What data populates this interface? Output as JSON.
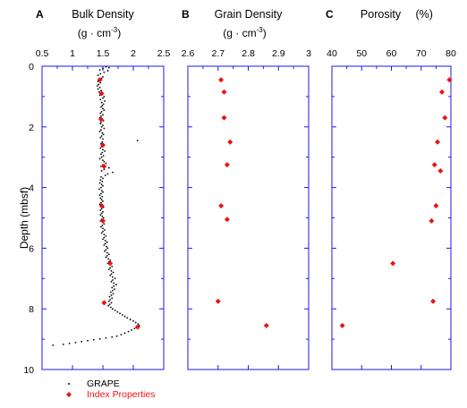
{
  "chart_data": [
    {
      "type": "scatter",
      "panel_label": "A",
      "title": "Bulk Density",
      "unit_base": "(g · cm",
      "unit_exp": "-3",
      "unit_close": ")",
      "ylabel": "Depth (mbsf)",
      "xlim": [
        0.5,
        2.5
      ],
      "ylim": [
        0,
        10
      ],
      "xticks": [
        "0.5",
        "1",
        "1.5",
        "2",
        "2.5"
      ],
      "yticks": [
        "0",
        "2",
        "4",
        "6",
        "8",
        "10"
      ],
      "series": [
        {
          "name": "GRAPE",
          "color": "#000000",
          "points": [
            [
              1.55,
              0.02
            ],
            [
              1.6,
              0.05
            ],
            [
              1.5,
              0.08
            ],
            [
              1.45,
              0.12
            ],
            [
              1.58,
              0.15
            ],
            [
              1.52,
              0.2
            ],
            [
              1.46,
              0.25
            ],
            [
              1.42,
              0.3
            ],
            [
              1.5,
              0.35
            ],
            [
              1.48,
              0.4
            ],
            [
              1.44,
              0.45
            ],
            [
              1.42,
              0.5
            ],
            [
              1.46,
              0.55
            ],
            [
              1.43,
              0.6
            ],
            [
              1.41,
              0.65
            ],
            [
              1.45,
              0.7
            ],
            [
              1.42,
              0.75
            ],
            [
              1.47,
              0.8
            ],
            [
              1.44,
              0.85
            ],
            [
              1.49,
              0.9
            ],
            [
              1.45,
              0.95
            ],
            [
              1.52,
              1.0
            ],
            [
              1.5,
              1.05
            ],
            [
              1.46,
              1.1
            ],
            [
              1.53,
              1.15
            ],
            [
              1.48,
              1.2
            ],
            [
              1.51,
              1.25
            ],
            [
              1.49,
              1.3
            ],
            [
              1.47,
              1.35
            ],
            [
              1.5,
              1.4
            ],
            [
              1.52,
              1.45
            ],
            [
              1.48,
              1.5
            ],
            [
              1.46,
              1.55
            ],
            [
              1.5,
              1.6
            ],
            [
              1.47,
              1.65
            ],
            [
              1.45,
              1.7
            ],
            [
              1.49,
              1.75
            ],
            [
              1.51,
              1.8
            ],
            [
              1.47,
              1.85
            ],
            [
              1.46,
              1.9
            ],
            [
              1.5,
              1.95
            ],
            [
              1.48,
              2.0
            ],
            [
              1.52,
              2.05
            ],
            [
              1.47,
              2.1
            ],
            [
              1.45,
              2.15
            ],
            [
              1.49,
              2.2
            ],
            [
              1.51,
              2.25
            ],
            [
              1.48,
              2.3
            ],
            [
              1.46,
              2.35
            ],
            [
              1.5,
              2.4
            ],
            [
              2.07,
              2.45
            ],
            [
              1.49,
              2.5
            ],
            [
              1.47,
              2.55
            ],
            [
              1.52,
              2.6
            ],
            [
              1.48,
              2.65
            ],
            [
              1.46,
              2.7
            ],
            [
              1.5,
              2.75
            ],
            [
              1.53,
              2.8
            ],
            [
              1.49,
              2.85
            ],
            [
              1.47,
              2.9
            ],
            [
              1.51,
              2.95
            ],
            [
              1.48,
              3.0
            ],
            [
              1.45,
              3.05
            ],
            [
              1.5,
              3.1
            ],
            [
              1.52,
              3.15
            ],
            [
              1.55,
              3.2
            ],
            [
              1.5,
              3.25
            ],
            [
              1.47,
              3.3
            ],
            [
              1.6,
              3.35
            ],
            [
              1.52,
              3.4
            ],
            [
              1.48,
              3.45
            ],
            [
              1.66,
              3.5
            ],
            [
              1.58,
              3.55
            ],
            [
              1.54,
              3.6
            ],
            [
              1.47,
              3.65
            ],
            [
              1.5,
              3.7
            ],
            [
              1.46,
              3.75
            ],
            [
              1.49,
              3.8
            ],
            [
              1.45,
              3.85
            ],
            [
              1.48,
              3.9
            ],
            [
              1.5,
              3.95
            ],
            [
              1.47,
              4.0
            ],
            [
              1.44,
              4.05
            ],
            [
              1.48,
              4.1
            ],
            [
              1.5,
              4.15
            ],
            [
              1.47,
              4.2
            ],
            [
              1.45,
              4.25
            ],
            [
              1.49,
              4.3
            ],
            [
              1.46,
              4.35
            ],
            [
              1.48,
              4.4
            ],
            [
              1.5,
              4.45
            ],
            [
              1.47,
              4.5
            ],
            [
              1.45,
              4.55
            ],
            [
              1.49,
              4.6
            ],
            [
              1.51,
              4.65
            ],
            [
              1.48,
              4.7
            ],
            [
              1.46,
              4.75
            ],
            [
              1.5,
              4.8
            ],
            [
              1.48,
              4.85
            ],
            [
              1.46,
              4.9
            ],
            [
              1.49,
              4.95
            ],
            [
              1.51,
              5.0
            ],
            [
              1.48,
              5.05
            ],
            [
              1.46,
              5.1
            ],
            [
              1.5,
              5.15
            ],
            [
              1.52,
              5.2
            ],
            [
              1.49,
              5.25
            ],
            [
              1.47,
              5.3
            ],
            [
              1.5,
              5.35
            ],
            [
              1.53,
              5.4
            ],
            [
              1.5,
              5.45
            ],
            [
              1.48,
              5.5
            ],
            [
              1.52,
              5.55
            ],
            [
              1.55,
              5.6
            ],
            [
              1.52,
              5.65
            ],
            [
              1.5,
              5.7
            ],
            [
              1.54,
              5.75
            ],
            [
              1.57,
              5.8
            ],
            [
              1.54,
              5.85
            ],
            [
              1.52,
              5.9
            ],
            [
              1.56,
              5.95
            ],
            [
              1.58,
              6.0
            ],
            [
              1.55,
              6.05
            ],
            [
              1.53,
              6.1
            ],
            [
              1.57,
              6.15
            ],
            [
              1.6,
              6.2
            ],
            [
              1.57,
              6.25
            ],
            [
              1.55,
              6.3
            ],
            [
              1.59,
              6.35
            ],
            [
              1.62,
              6.4
            ],
            [
              1.6,
              6.45
            ],
            [
              1.58,
              6.5
            ],
            [
              1.62,
              6.55
            ],
            [
              1.65,
              6.6
            ],
            [
              1.62,
              6.65
            ],
            [
              1.6,
              6.7
            ],
            [
              1.64,
              6.75
            ],
            [
              1.67,
              6.8
            ],
            [
              1.64,
              6.85
            ],
            [
              1.62,
              6.9
            ],
            [
              1.66,
              6.95
            ],
            [
              1.7,
              7.0
            ],
            [
              1.66,
              7.05
            ],
            [
              1.64,
              7.1
            ],
            [
              1.68,
              7.15
            ],
            [
              1.72,
              7.2
            ],
            [
              1.68,
              7.25
            ],
            [
              1.65,
              7.3
            ],
            [
              1.69,
              7.35
            ],
            [
              1.66,
              7.4
            ],
            [
              1.63,
              7.45
            ],
            [
              1.67,
              7.5
            ],
            [
              1.64,
              7.55
            ],
            [
              1.61,
              7.6
            ],
            [
              1.65,
              7.65
            ],
            [
              1.62,
              7.7
            ],
            [
              1.6,
              7.75
            ],
            [
              1.64,
              7.8
            ],
            [
              1.61,
              7.85
            ],
            [
              1.59,
              7.9
            ],
            [
              1.63,
              7.95
            ],
            [
              1.66,
              8.0
            ],
            [
              1.7,
              8.05
            ],
            [
              1.74,
              8.1
            ],
            [
              1.78,
              8.15
            ],
            [
              1.82,
              8.2
            ],
            [
              1.86,
              8.25
            ],
            [
              1.9,
              8.3
            ],
            [
              1.95,
              8.35
            ],
            [
              2.0,
              8.4
            ],
            [
              2.04,
              8.45
            ],
            [
              2.08,
              8.5
            ],
            [
              2.1,
              8.55
            ],
            [
              2.06,
              8.6
            ],
            [
              2.02,
              8.65
            ],
            [
              1.97,
              8.7
            ],
            [
              1.92,
              8.75
            ],
            [
              1.86,
              8.8
            ],
            [
              1.8,
              8.85
            ],
            [
              1.73,
              8.9
            ],
            [
              1.65,
              8.93
            ],
            [
              1.55,
              8.96
            ],
            [
              1.45,
              8.99
            ],
            [
              1.35,
              9.02
            ],
            [
              1.25,
              9.05
            ],
            [
              1.15,
              9.08
            ],
            [
              1.05,
              9.11
            ],
            [
              0.95,
              9.14
            ],
            [
              0.85,
              9.17
            ],
            [
              0.68,
              9.2
            ]
          ]
        },
        {
          "name": "Index Properties",
          "color": "#ee1111",
          "points": [
            [
              1.45,
              0.45
            ],
            [
              1.48,
              0.9
            ],
            [
              1.47,
              1.75
            ],
            [
              1.5,
              2.6
            ],
            [
              1.52,
              3.3
            ],
            [
              1.48,
              4.6
            ],
            [
              1.5,
              5.1
            ],
            [
              1.62,
              6.5
            ],
            [
              1.52,
              7.8
            ],
            [
              2.07,
              8.6
            ]
          ]
        }
      ]
    },
    {
      "type": "scatter",
      "panel_label": "B",
      "title": "Grain Density",
      "unit_base": "(g · cm",
      "unit_exp": "-3",
      "unit_close": ")",
      "xlim": [
        2.6,
        3.0
      ],
      "ylim": [
        0,
        10
      ],
      "xticks": [
        "2.6",
        "2.7",
        "2.8",
        "2.9",
        "3"
      ],
      "series": [
        {
          "name": "Index Properties",
          "color": "#ee1111",
          "points": [
            [
              2.71,
              0.45
            ],
            [
              2.72,
              0.85
            ],
            [
              2.72,
              1.7
            ],
            [
              2.74,
              2.5
            ],
            [
              2.73,
              3.25
            ],
            [
              2.71,
              4.6
            ],
            [
              2.73,
              5.05
            ],
            [
              2.7,
              7.75
            ],
            [
              2.86,
              8.55
            ]
          ]
        }
      ]
    },
    {
      "type": "scatter",
      "panel_label": "C",
      "title": "Porosity",
      "unit_base": "(%)",
      "xlim": [
        40,
        80
      ],
      "ylim": [
        0,
        10
      ],
      "xticks": [
        "40",
        "50",
        "60",
        "70",
        "80"
      ],
      "series": [
        {
          "name": "Index Properties",
          "color": "#ee1111",
          "points": [
            [
              79.5,
              0.45
            ],
            [
              77,
              0.85
            ],
            [
              78,
              1.7
            ],
            [
              75.5,
              2.5
            ],
            [
              74.5,
              3.25
            ],
            [
              76.5,
              3.45
            ],
            [
              75,
              4.6
            ],
            [
              73.5,
              5.1
            ],
            [
              60.5,
              6.5
            ],
            [
              74,
              7.75
            ],
            [
              43.5,
              8.55
            ]
          ]
        }
      ]
    }
  ],
  "legend": {
    "items": [
      {
        "label": "GRAPE",
        "color": "#000000",
        "marker": "small-dot"
      },
      {
        "label": "Index Properties",
        "color": "#ee1111",
        "marker": "diamond"
      }
    ]
  }
}
